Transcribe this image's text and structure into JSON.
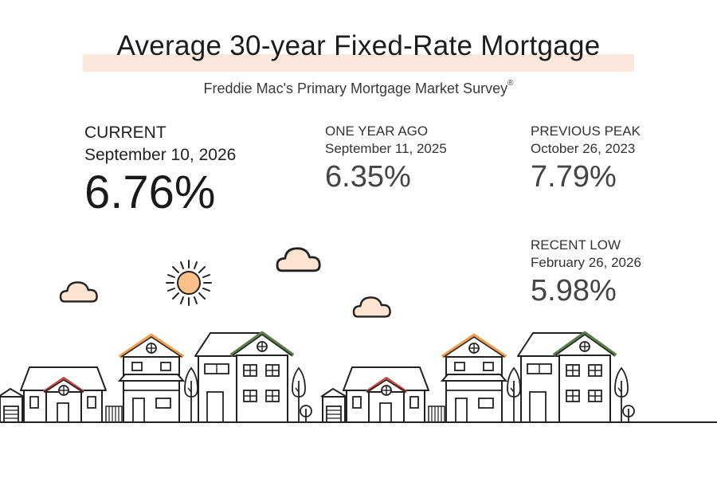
{
  "title": "Average 30-year Fixed-Rate Mortgage",
  "subtitle": "Freddie Mac's Primary Mortgage Market Survey",
  "subtitle_mark": "®",
  "current": {
    "label": "CURRENT",
    "date": "September 10, 2026",
    "value": "6.76%"
  },
  "one_year_ago": {
    "label": "ONE YEAR AGO",
    "date": "September 11, 2025",
    "value": "6.35%"
  },
  "previous_peak": {
    "label": "PREVIOUS PEAK",
    "date": "October 26, 2023",
    "value": "7.79%"
  },
  "recent_low": {
    "label": "RECENT LOW",
    "date": "February 26, 2026",
    "value": "5.98%"
  },
  "colors": {
    "accent_orange": "#f0a050",
    "accent_red": "#c4504a",
    "accent_green": "#5e7d4e",
    "cloud_fill": "#fde3d2",
    "sun_fill": "#fbc08a",
    "highlight": "#fbe7dc"
  },
  "illustration": {
    "icons": [
      "sun-icon",
      "cloud-icon",
      "house-icon",
      "tree-icon"
    ]
  }
}
